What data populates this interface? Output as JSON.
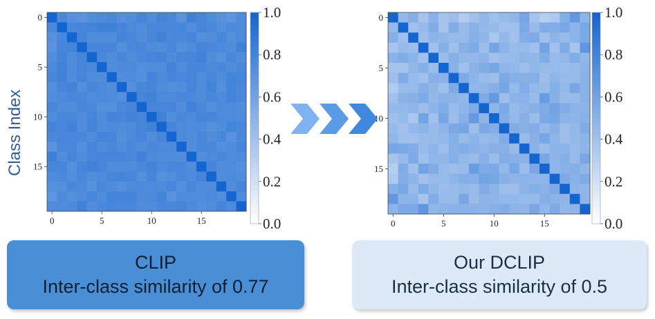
{
  "ylabel": "Class Index",
  "arrow_colors": [
    "#7fb2ee",
    "#5c9be6",
    "#3f88de"
  ],
  "panels": [
    {
      "caption_line1": "CLIP",
      "caption_line2": "Inter-class similarity of 0.77"
    },
    {
      "caption_line1": "Our DCLIP",
      "caption_line2": "Inter-class similarity of 0.5"
    }
  ],
  "chart_data": [
    {
      "type": "heatmap",
      "title": "",
      "ylabel": "Class Index",
      "xlabel": "",
      "x_ticks": [
        0,
        5,
        10,
        15
      ],
      "y_ticks": [
        0,
        5,
        10,
        15
      ],
      "n_classes": 20,
      "colorbar_range": [
        0.0,
        1.0
      ],
      "colorbar_ticks": [
        "0.0",
        "0.2",
        "0.4",
        "0.6",
        "0.8",
        "1.0"
      ],
      "colormap": [
        "#ffffff",
        "#1565d0"
      ],
      "matrix": [
        [
          1.0,
          0.77,
          0.72,
          0.7,
          0.74,
          0.76,
          0.78,
          0.73,
          0.74,
          0.79,
          0.75,
          0.8,
          0.77,
          0.71,
          0.82,
          0.79,
          0.75,
          0.72,
          0.69,
          0.75
        ],
        [
          0.77,
          1.0,
          0.78,
          0.79,
          0.8,
          0.81,
          0.81,
          0.79,
          0.76,
          0.75,
          0.78,
          0.78,
          0.78,
          0.78,
          0.74,
          0.79,
          0.77,
          0.73,
          0.76,
          0.75
        ],
        [
          0.72,
          0.78,
          1.0,
          0.8,
          0.75,
          0.75,
          0.75,
          0.8,
          0.78,
          0.74,
          0.78,
          0.81,
          0.77,
          0.77,
          0.79,
          0.73,
          0.74,
          0.78,
          0.73,
          0.76
        ],
        [
          0.7,
          0.79,
          0.8,
          1.0,
          0.79,
          0.79,
          0.79,
          0.73,
          0.77,
          0.78,
          0.75,
          0.74,
          0.78,
          0.73,
          0.75,
          0.79,
          0.77,
          0.76,
          0.74,
          0.81
        ],
        [
          0.74,
          0.8,
          0.75,
          0.79,
          1.0,
          0.78,
          0.75,
          0.78,
          0.75,
          0.77,
          0.79,
          0.8,
          0.75,
          0.79,
          0.79,
          0.81,
          0.74,
          0.72,
          0.78,
          0.74
        ],
        [
          0.76,
          0.81,
          0.75,
          0.79,
          0.78,
          1.0,
          0.74,
          0.76,
          0.76,
          0.73,
          0.75,
          0.75,
          0.8,
          0.75,
          0.79,
          0.79,
          0.76,
          0.77,
          0.75,
          0.77
        ],
        [
          0.78,
          0.81,
          0.75,
          0.79,
          0.75,
          0.74,
          1.0,
          0.74,
          0.75,
          0.73,
          0.8,
          0.76,
          0.79,
          0.77,
          0.79,
          0.75,
          0.78,
          0.75,
          0.8,
          0.79
        ],
        [
          0.73,
          0.79,
          0.8,
          0.73,
          0.78,
          0.76,
          0.74,
          1.0,
          0.73,
          0.78,
          0.79,
          0.75,
          0.73,
          0.74,
          0.79,
          0.75,
          0.8,
          0.73,
          0.8,
          0.77
        ],
        [
          0.74,
          0.76,
          0.78,
          0.77,
          0.75,
          0.76,
          0.75,
          0.73,
          1.0,
          0.79,
          0.81,
          0.76,
          0.76,
          0.77,
          0.77,
          0.75,
          0.78,
          0.76,
          0.8,
          0.78
        ],
        [
          0.79,
          0.75,
          0.74,
          0.78,
          0.77,
          0.73,
          0.73,
          0.78,
          0.79,
          1.0,
          0.79,
          0.79,
          0.79,
          0.74,
          0.81,
          0.77,
          0.73,
          0.76,
          0.76,
          0.74
        ],
        [
          0.75,
          0.78,
          0.78,
          0.75,
          0.79,
          0.75,
          0.8,
          0.79,
          0.81,
          0.79,
          1.0,
          0.81,
          0.74,
          0.77,
          0.76,
          0.8,
          0.79,
          0.76,
          0.76,
          0.75
        ],
        [
          0.8,
          0.78,
          0.81,
          0.74,
          0.8,
          0.75,
          0.76,
          0.75,
          0.76,
          0.79,
          0.81,
          1.0,
          0.79,
          0.76,
          0.75,
          0.76,
          0.72,
          0.75,
          0.8,
          0.77
        ],
        [
          0.77,
          0.78,
          0.77,
          0.78,
          0.75,
          0.8,
          0.79,
          0.73,
          0.76,
          0.79,
          0.74,
          0.79,
          1.0,
          0.76,
          0.75,
          0.78,
          0.74,
          0.78,
          0.71,
          0.77
        ],
        [
          0.71,
          0.78,
          0.77,
          0.73,
          0.79,
          0.75,
          0.77,
          0.74,
          0.77,
          0.74,
          0.77,
          0.76,
          0.76,
          1.0,
          0.74,
          0.78,
          0.77,
          0.73,
          0.75,
          0.79
        ],
        [
          0.82,
          0.74,
          0.79,
          0.75,
          0.79,
          0.79,
          0.79,
          0.79,
          0.77,
          0.81,
          0.76,
          0.75,
          0.75,
          0.74,
          1.0,
          0.74,
          0.76,
          0.78,
          0.75,
          0.76
        ],
        [
          0.79,
          0.79,
          0.73,
          0.79,
          0.81,
          0.79,
          0.75,
          0.75,
          0.75,
          0.77,
          0.8,
          0.76,
          0.78,
          0.78,
          0.74,
          1.0,
          0.79,
          0.75,
          0.75,
          0.73
        ],
        [
          0.75,
          0.77,
          0.74,
          0.77,
          0.74,
          0.76,
          0.78,
          0.8,
          0.78,
          0.73,
          0.79,
          0.72,
          0.74,
          0.77,
          0.76,
          0.79,
          1.0,
          0.75,
          0.76,
          0.74
        ],
        [
          0.72,
          0.73,
          0.78,
          0.76,
          0.72,
          0.77,
          0.75,
          0.73,
          0.76,
          0.76,
          0.76,
          0.75,
          0.78,
          0.73,
          0.78,
          0.75,
          0.75,
          1.0,
          0.74,
          0.79
        ],
        [
          0.69,
          0.76,
          0.73,
          0.74,
          0.78,
          0.75,
          0.8,
          0.8,
          0.8,
          0.76,
          0.76,
          0.8,
          0.71,
          0.75,
          0.75,
          0.75,
          0.76,
          0.74,
          1.0,
          0.76
        ],
        [
          0.75,
          0.75,
          0.76,
          0.81,
          0.74,
          0.77,
          0.79,
          0.77,
          0.78,
          0.74,
          0.75,
          0.77,
          0.77,
          0.79,
          0.76,
          0.73,
          0.74,
          0.79,
          0.76,
          1.0
        ]
      ]
    },
    {
      "type": "heatmap",
      "title": "",
      "xlabel": "",
      "x_ticks": [
        0,
        5,
        10,
        15
      ],
      "y_ticks": [
        0,
        5,
        10,
        15
      ],
      "n_classes": 20,
      "colorbar_range": [
        0.0,
        1.0
      ],
      "colorbar_ticks": [
        "0.0",
        "0.2",
        "0.4",
        "0.6",
        "0.8",
        "1.0"
      ],
      "colormap": [
        "#ffffff",
        "#1565d0"
      ],
      "matrix": [
        [
          1.0,
          0.46,
          0.52,
          0.38,
          0.5,
          0.39,
          0.42,
          0.34,
          0.4,
          0.46,
          0.41,
          0.45,
          0.47,
          0.58,
          0.39,
          0.32,
          0.35,
          0.52,
          0.67,
          0.49
        ],
        [
          0.46,
          1.0,
          0.41,
          0.45,
          0.54,
          0.39,
          0.54,
          0.44,
          0.5,
          0.46,
          0.45,
          0.4,
          0.41,
          0.56,
          0.45,
          0.54,
          0.53,
          0.57,
          0.49,
          0.56
        ],
        [
          0.52,
          0.41,
          1.0,
          0.42,
          0.49,
          0.47,
          0.45,
          0.45,
          0.51,
          0.48,
          0.37,
          0.46,
          0.4,
          0.53,
          0.55,
          0.41,
          0.48,
          0.44,
          0.49,
          0.56
        ],
        [
          0.38,
          0.45,
          0.42,
          1.0,
          0.4,
          0.52,
          0.41,
          0.51,
          0.55,
          0.42,
          0.59,
          0.49,
          0.44,
          0.45,
          0.41,
          0.6,
          0.4,
          0.55,
          0.38,
          0.68
        ],
        [
          0.5,
          0.54,
          0.49,
          0.4,
          1.0,
          0.43,
          0.51,
          0.47,
          0.46,
          0.48,
          0.4,
          0.44,
          0.45,
          0.48,
          0.47,
          0.54,
          0.45,
          0.47,
          0.54,
          0.47
        ],
        [
          0.39,
          0.39,
          0.47,
          0.52,
          0.43,
          1.0,
          0.5,
          0.41,
          0.5,
          0.54,
          0.58,
          0.48,
          0.46,
          0.42,
          0.47,
          0.45,
          0.45,
          0.43,
          0.45,
          0.49
        ],
        [
          0.42,
          0.54,
          0.45,
          0.41,
          0.51,
          0.5,
          1.0,
          0.55,
          0.49,
          0.44,
          0.42,
          0.56,
          0.52,
          0.51,
          0.52,
          0.42,
          0.48,
          0.44,
          0.44,
          0.5
        ],
        [
          0.34,
          0.44,
          0.45,
          0.51,
          0.47,
          0.41,
          0.55,
          1.0,
          0.47,
          0.48,
          0.51,
          0.58,
          0.45,
          0.53,
          0.46,
          0.44,
          0.52,
          0.46,
          0.57,
          0.5
        ],
        [
          0.4,
          0.5,
          0.51,
          0.55,
          0.46,
          0.5,
          0.49,
          0.47,
          1.0,
          0.55,
          0.66,
          0.42,
          0.49,
          0.5,
          0.44,
          0.64,
          0.51,
          0.44,
          0.44,
          0.5
        ],
        [
          0.46,
          0.46,
          0.48,
          0.42,
          0.48,
          0.54,
          0.44,
          0.48,
          0.55,
          1.0,
          0.48,
          0.56,
          0.45,
          0.48,
          0.51,
          0.55,
          0.6,
          0.54,
          0.49,
          0.49
        ],
        [
          0.41,
          0.45,
          0.37,
          0.59,
          0.4,
          0.58,
          0.42,
          0.51,
          0.66,
          0.48,
          1.0,
          0.53,
          0.46,
          0.51,
          0.43,
          0.56,
          0.58,
          0.49,
          0.48,
          0.51
        ],
        [
          0.45,
          0.4,
          0.46,
          0.49,
          0.44,
          0.48,
          0.56,
          0.58,
          0.42,
          0.56,
          0.53,
          1.0,
          0.54,
          0.51,
          0.53,
          0.46,
          0.51,
          0.42,
          0.46,
          0.54
        ],
        [
          0.47,
          0.41,
          0.4,
          0.44,
          0.45,
          0.46,
          0.52,
          0.45,
          0.49,
          0.45,
          0.46,
          0.54,
          1.0,
          0.44,
          0.51,
          0.58,
          0.48,
          0.42,
          0.46,
          0.49
        ],
        [
          0.58,
          0.56,
          0.53,
          0.45,
          0.48,
          0.42,
          0.51,
          0.53,
          0.5,
          0.48,
          0.51,
          0.51,
          0.44,
          1.0,
          0.5,
          0.43,
          0.49,
          0.49,
          0.45,
          0.48
        ],
        [
          0.39,
          0.45,
          0.55,
          0.41,
          0.47,
          0.47,
          0.52,
          0.46,
          0.44,
          0.51,
          0.43,
          0.53,
          0.51,
          0.5,
          1.0,
          0.57,
          0.48,
          0.52,
          0.45,
          0.57
        ],
        [
          0.32,
          0.54,
          0.41,
          0.6,
          0.54,
          0.45,
          0.42,
          0.44,
          0.64,
          0.55,
          0.56,
          0.46,
          0.58,
          0.43,
          0.57,
          1.0,
          0.48,
          0.5,
          0.52,
          0.47
        ],
        [
          0.35,
          0.53,
          0.48,
          0.4,
          0.45,
          0.45,
          0.48,
          0.52,
          0.51,
          0.6,
          0.58,
          0.51,
          0.48,
          0.49,
          0.48,
          0.48,
          1.0,
          0.55,
          0.5,
          0.55
        ],
        [
          0.52,
          0.57,
          0.44,
          0.55,
          0.47,
          0.43,
          0.44,
          0.46,
          0.44,
          0.54,
          0.49,
          0.42,
          0.42,
          0.49,
          0.52,
          0.5,
          0.55,
          1.0,
          0.48,
          0.47
        ],
        [
          0.67,
          0.49,
          0.49,
          0.38,
          0.54,
          0.45,
          0.44,
          0.57,
          0.44,
          0.49,
          0.48,
          0.46,
          0.46,
          0.45,
          0.45,
          0.52,
          0.5,
          0.48,
          1.0,
          0.48
        ],
        [
          0.49,
          0.56,
          0.56,
          0.68,
          0.47,
          0.49,
          0.5,
          0.5,
          0.5,
          0.49,
          0.51,
          0.54,
          0.49,
          0.48,
          0.57,
          0.47,
          0.55,
          0.47,
          0.48,
          1.0
        ]
      ]
    }
  ]
}
